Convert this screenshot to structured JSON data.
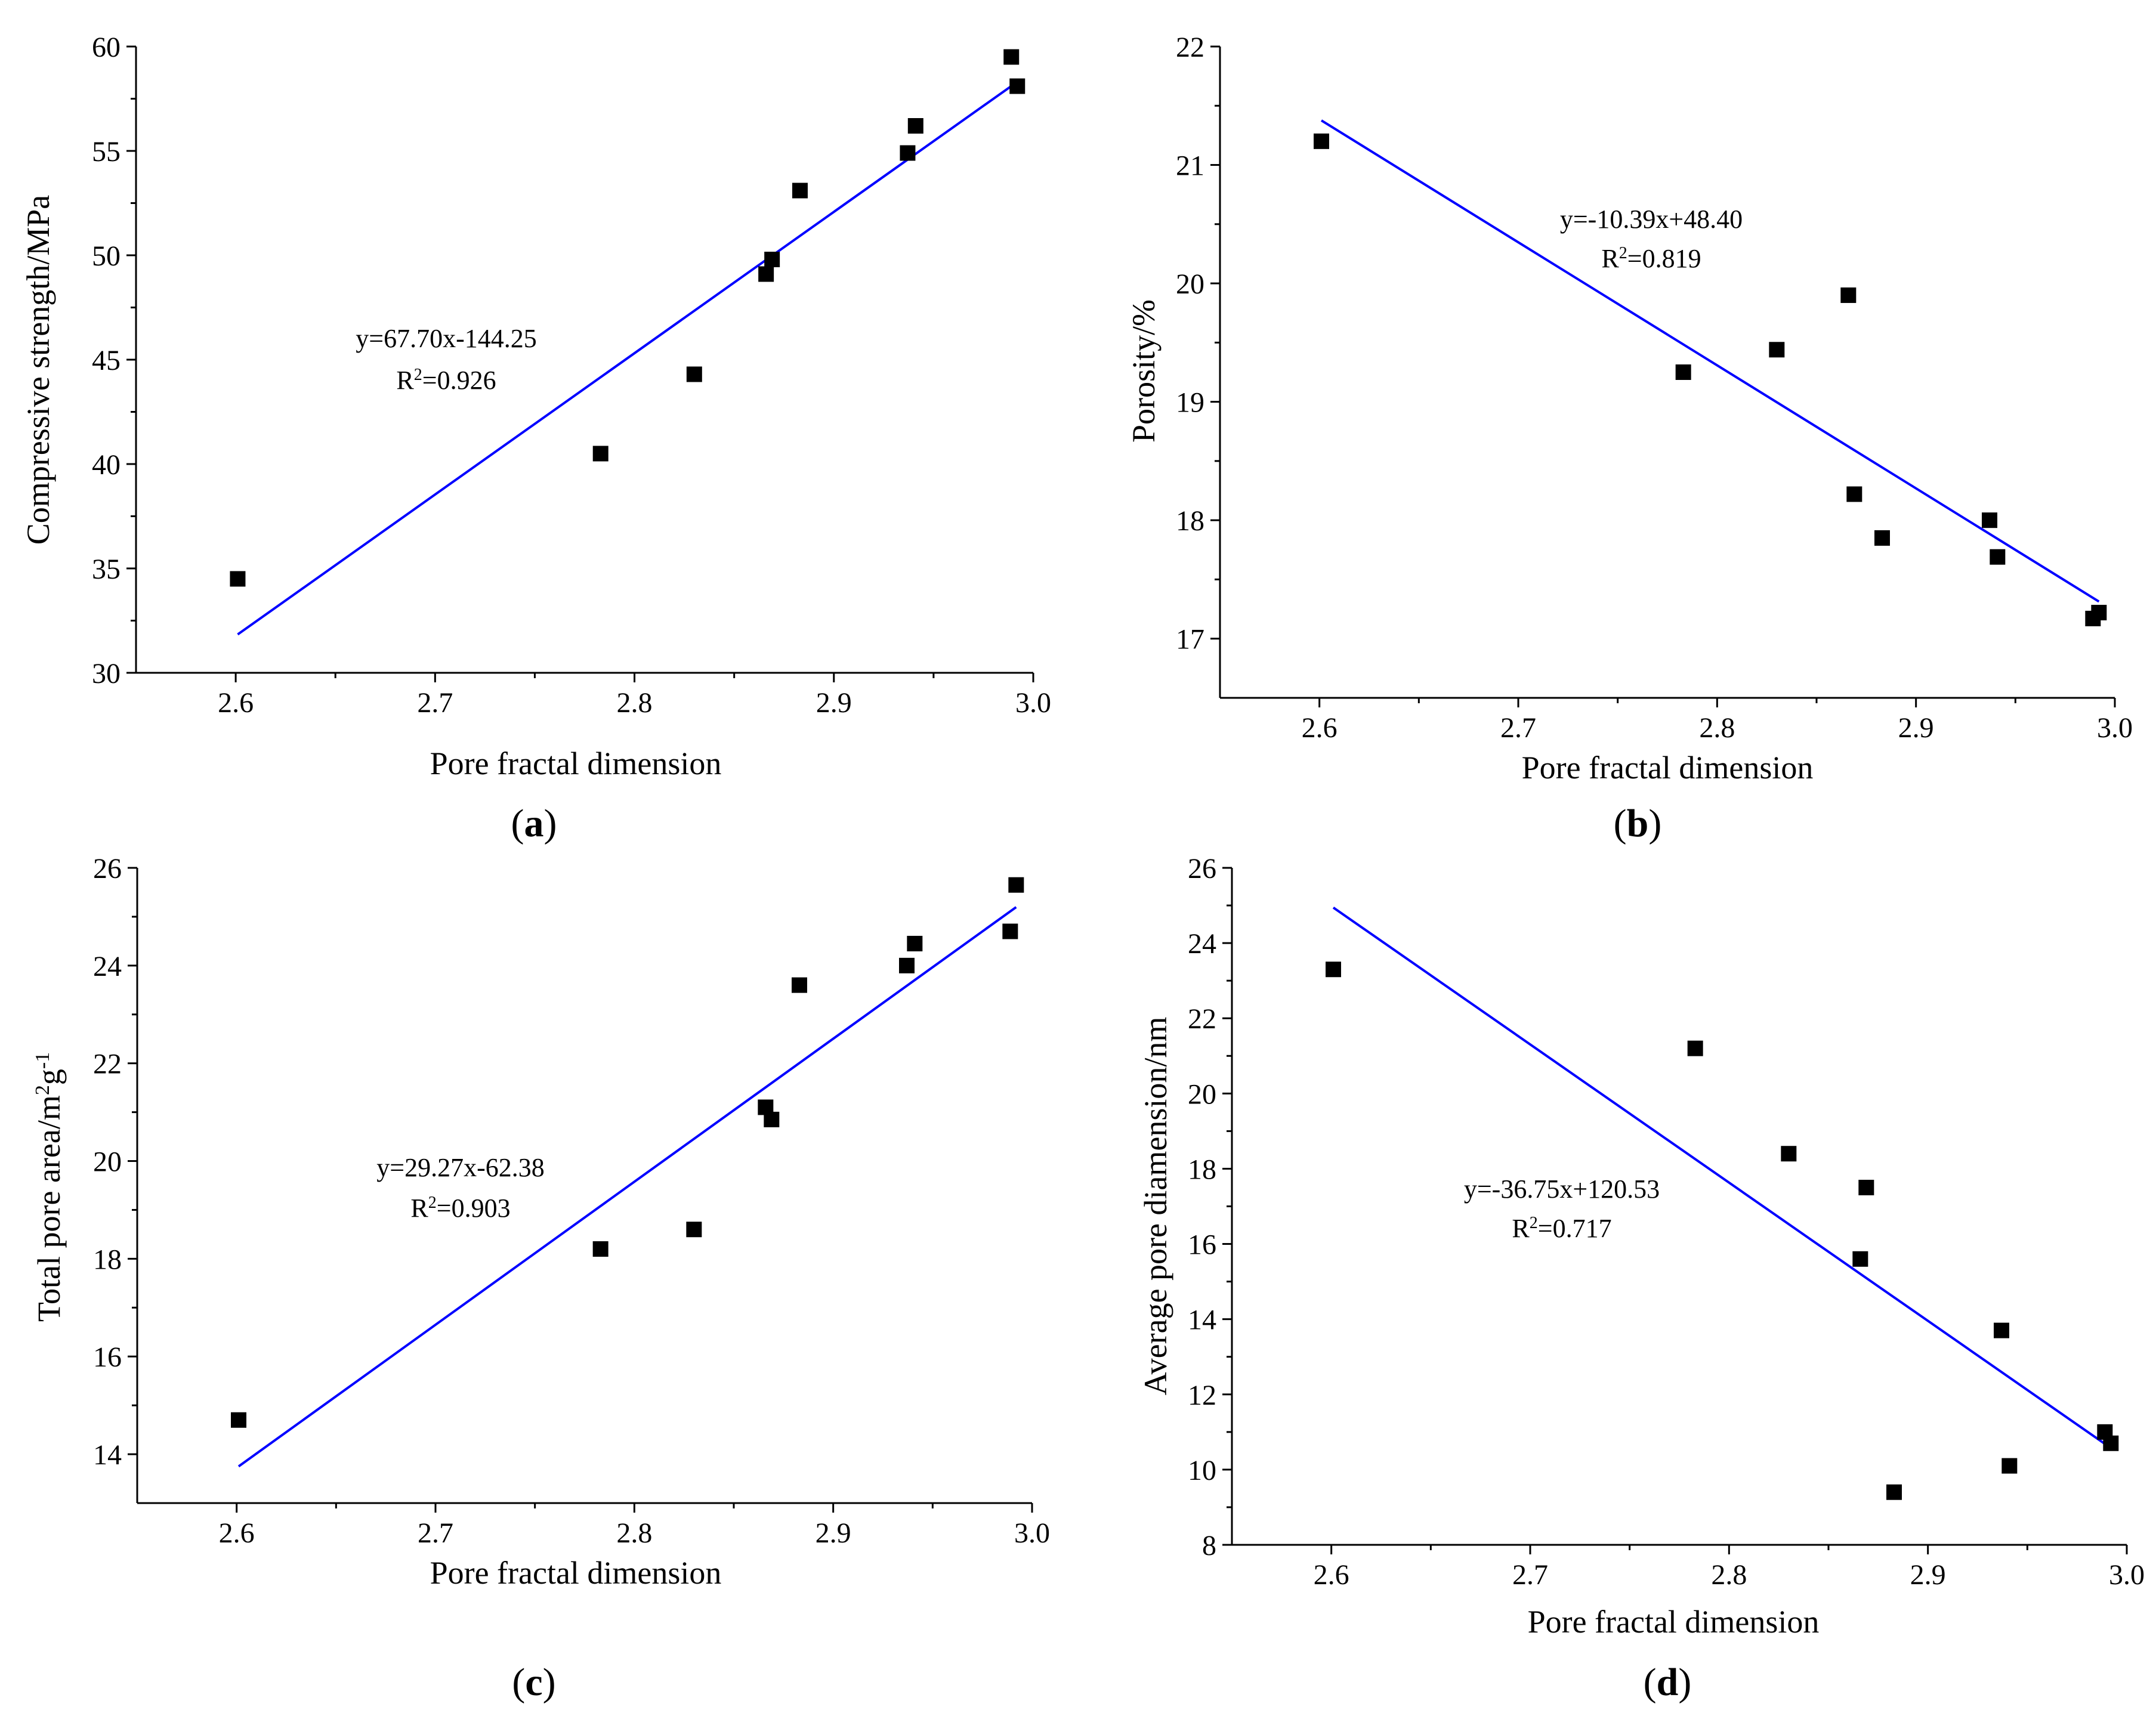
{
  "figure": {
    "colors": {
      "fit_line": "#0000ff",
      "points": "#000000",
      "axes": "#000000"
    }
  },
  "chart_data": [
    {
      "type": "scatter",
      "panel_label": "a",
      "title": "",
      "xlabel": "Pore fractal dimension",
      "ylabel": "Compressive strength/MPa",
      "xlim": [
        2.55,
        3.0
      ],
      "ylim": [
        30,
        60
      ],
      "xticks": [
        2.6,
        2.7,
        2.8,
        2.9,
        3.0
      ],
      "xtick_labels": [
        "2.6",
        "2.7",
        "2.8",
        "2.9",
        "3.0"
      ],
      "yticks": [
        30,
        35,
        40,
        45,
        50,
        55,
        60
      ],
      "ytick_labels": [
        "30",
        "35",
        "40",
        "45",
        "50",
        "55",
        "60"
      ],
      "series": [
        {
          "name": "data",
          "x": [
            2.601,
            2.783,
            2.83,
            2.866,
            2.869,
            2.883,
            2.937,
            2.941,
            2.989,
            2.992
          ],
          "y": [
            34.5,
            40.5,
            44.3,
            49.1,
            49.8,
            53.1,
            54.9,
            56.2,
            59.5,
            58.1
          ]
        }
      ],
      "fit": {
        "x_range": [
          2.601,
          2.992
        ],
        "slope": 67.7,
        "intercept": -144.25
      },
      "equation_text": "y=67.70x-144.25",
      "r2_label": "R",
      "r2_superscript": "2",
      "r2_value_text": "=0.926"
    },
    {
      "type": "scatter",
      "panel_label": "b",
      "title": "",
      "xlabel": "Pore fractal dimension",
      "ylabel": "Porosity/%",
      "xlim": [
        2.55,
        3.0
      ],
      "ylim": [
        16.5,
        22
      ],
      "xticks": [
        2.6,
        2.7,
        2.8,
        2.9,
        3.0
      ],
      "xtick_labels": [
        "2.6",
        "2.7",
        "2.8",
        "2.9",
        "3.0"
      ],
      "yticks": [
        17,
        18,
        19,
        20,
        21,
        22
      ],
      "ytick_labels": [
        "17",
        "18",
        "19",
        "20",
        "21",
        "22"
      ],
      "series": [
        {
          "name": "data",
          "x": [
            2.601,
            2.783,
            2.83,
            2.866,
            2.869,
            2.883,
            2.937,
            2.941,
            2.989,
            2.992
          ],
          "y": [
            21.2,
            19.25,
            19.44,
            19.9,
            18.22,
            17.85,
            18.0,
            17.69,
            17.17,
            17.22
          ]
        }
      ],
      "fit": {
        "x_range": [
          2.601,
          2.992
        ],
        "slope": -10.39,
        "intercept": 48.4
      },
      "equation_text": "y=-10.39x+48.40",
      "r2_label": "R",
      "r2_superscript": "2",
      "r2_value_text": "=0.819"
    },
    {
      "type": "scatter",
      "panel_label": "c",
      "title": "",
      "xlabel": "Pore fractal dimension",
      "ylabel": "Total pore area/m",
      "ylabel_sup1": "2",
      "ylabel_mid": "g",
      "ylabel_sup2": "-1",
      "xlim": [
        2.55,
        3.0
      ],
      "ylim": [
        13,
        26
      ],
      "xticks": [
        2.6,
        2.7,
        2.8,
        2.9,
        3.0
      ],
      "xtick_labels": [
        "2.6",
        "2.7",
        "2.8",
        "2.9",
        "3.0"
      ],
      "yticks": [
        14,
        16,
        18,
        20,
        22,
        24,
        26
      ],
      "ytick_labels": [
        "14",
        "16",
        "18",
        "20",
        "22",
        "24",
        "26"
      ],
      "series": [
        {
          "name": "data",
          "x": [
            2.601,
            2.783,
            2.83,
            2.866,
            2.869,
            2.883,
            2.937,
            2.941,
            2.989,
            2.992
          ],
          "y": [
            14.7,
            18.2,
            18.6,
            21.1,
            20.85,
            23.6,
            24.0,
            24.45,
            24.7,
            25.65
          ]
        }
      ],
      "fit": {
        "x_range": [
          2.601,
          2.992
        ],
        "slope": 29.27,
        "intercept": -62.38
      },
      "equation_text": "y=29.27x-62.38",
      "r2_label": "R",
      "r2_superscript": "2",
      "r2_value_text": "=0.903"
    },
    {
      "type": "scatter",
      "panel_label": "d",
      "title": "",
      "xlabel": "Pore fractal dimension",
      "ylabel": "Average pore diamension/nm",
      "xlim": [
        2.55,
        3.0
      ],
      "ylim": [
        8,
        26
      ],
      "xticks": [
        2.6,
        2.7,
        2.8,
        2.9,
        3.0
      ],
      "xtick_labels": [
        "2.6",
        "2.7",
        "2.8",
        "2.9",
        "3.0"
      ],
      "yticks": [
        8,
        10,
        12,
        14,
        16,
        18,
        20,
        22,
        24,
        26
      ],
      "ytick_labels": [
        "8",
        "10",
        "12",
        "14",
        "16",
        "18",
        "20",
        "22",
        "24",
        "26"
      ],
      "series": [
        {
          "name": "data",
          "x": [
            2.601,
            2.783,
            2.83,
            2.866,
            2.869,
            2.883,
            2.937,
            2.941,
            2.989,
            2.992
          ],
          "y": [
            23.3,
            21.2,
            18.4,
            15.6,
            17.5,
            9.4,
            13.7,
            10.1,
            11.0,
            10.7
          ]
        }
      ],
      "fit": {
        "x_range": [
          2.601,
          2.992
        ],
        "slope": -36.75,
        "intercept": 120.53
      },
      "equation_text": "y=-36.75x+120.53",
      "r2_label": "R",
      "r2_superscript": "2",
      "r2_value_text": "=0.717"
    }
  ]
}
